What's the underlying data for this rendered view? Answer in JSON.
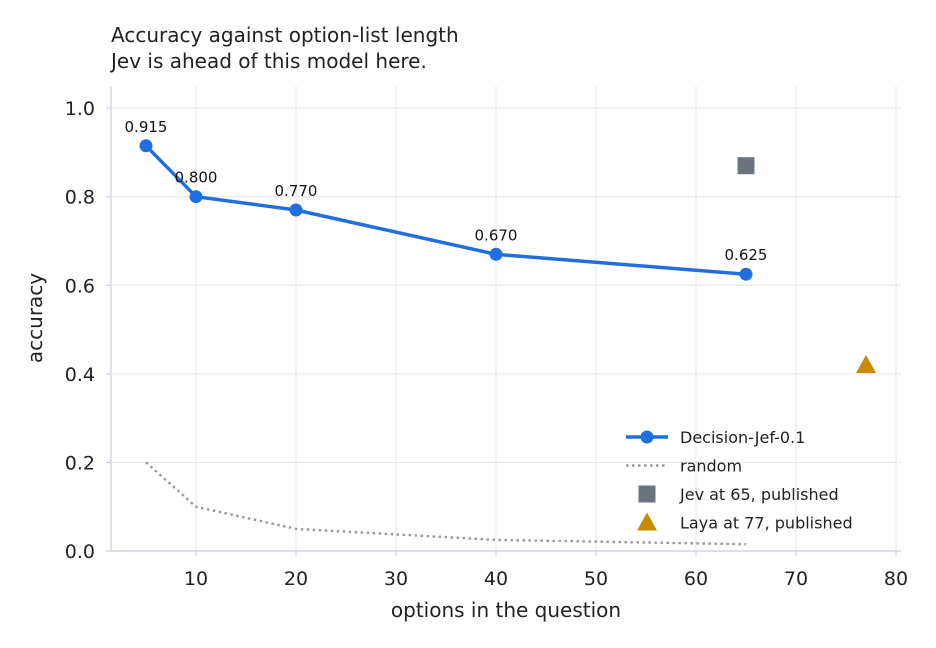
{
  "chart_data": {
    "type": "line",
    "title": "Accuracy against option-list length",
    "subtitle": "Jev is ahead of this model here.",
    "xlabel": "options in the question",
    "ylabel": "accuracy",
    "xlim": [
      1.5,
      80.5
    ],
    "ylim": [
      0.0,
      1.05
    ],
    "xticks": [
      10,
      20,
      30,
      40,
      50,
      60,
      70,
      80
    ],
    "xtick_labels": [
      "10",
      "20",
      "30",
      "40",
      "50",
      "60",
      "70",
      "80"
    ],
    "yticks": [
      0.0,
      0.2,
      0.4,
      0.6,
      0.8,
      1.0
    ],
    "ytick_labels": [
      "0.0",
      "0.2",
      "0.4",
      "0.6",
      "0.8",
      "1.0"
    ],
    "grid": true,
    "legend_position": "bottom-right",
    "series": [
      {
        "name": "Decision-Jef-0.1",
        "style": "line-markers",
        "color": "#1f6fe0",
        "x": [
          5,
          10,
          20,
          40,
          65
        ],
        "y": [
          0.915,
          0.8,
          0.77,
          0.67,
          0.625
        ],
        "labels": [
          "0.915",
          "0.800",
          "0.770",
          "0.670",
          "0.625"
        ]
      },
      {
        "name": "random",
        "style": "dotted",
        "color": "#999999",
        "x": [
          5,
          10,
          20,
          40,
          65
        ],
        "y": [
          0.2,
          0.1,
          0.05,
          0.025,
          0.0154
        ]
      },
      {
        "name": "Jev at 65, published",
        "style": "square-marker",
        "color": "#6b7380",
        "x": [
          65
        ],
        "y": [
          0.87
        ]
      },
      {
        "name": "Laya at 77, published",
        "style": "triangle-marker",
        "color": "#c88a00",
        "x": [
          77
        ],
        "y": [
          0.42
        ]
      }
    ]
  }
}
